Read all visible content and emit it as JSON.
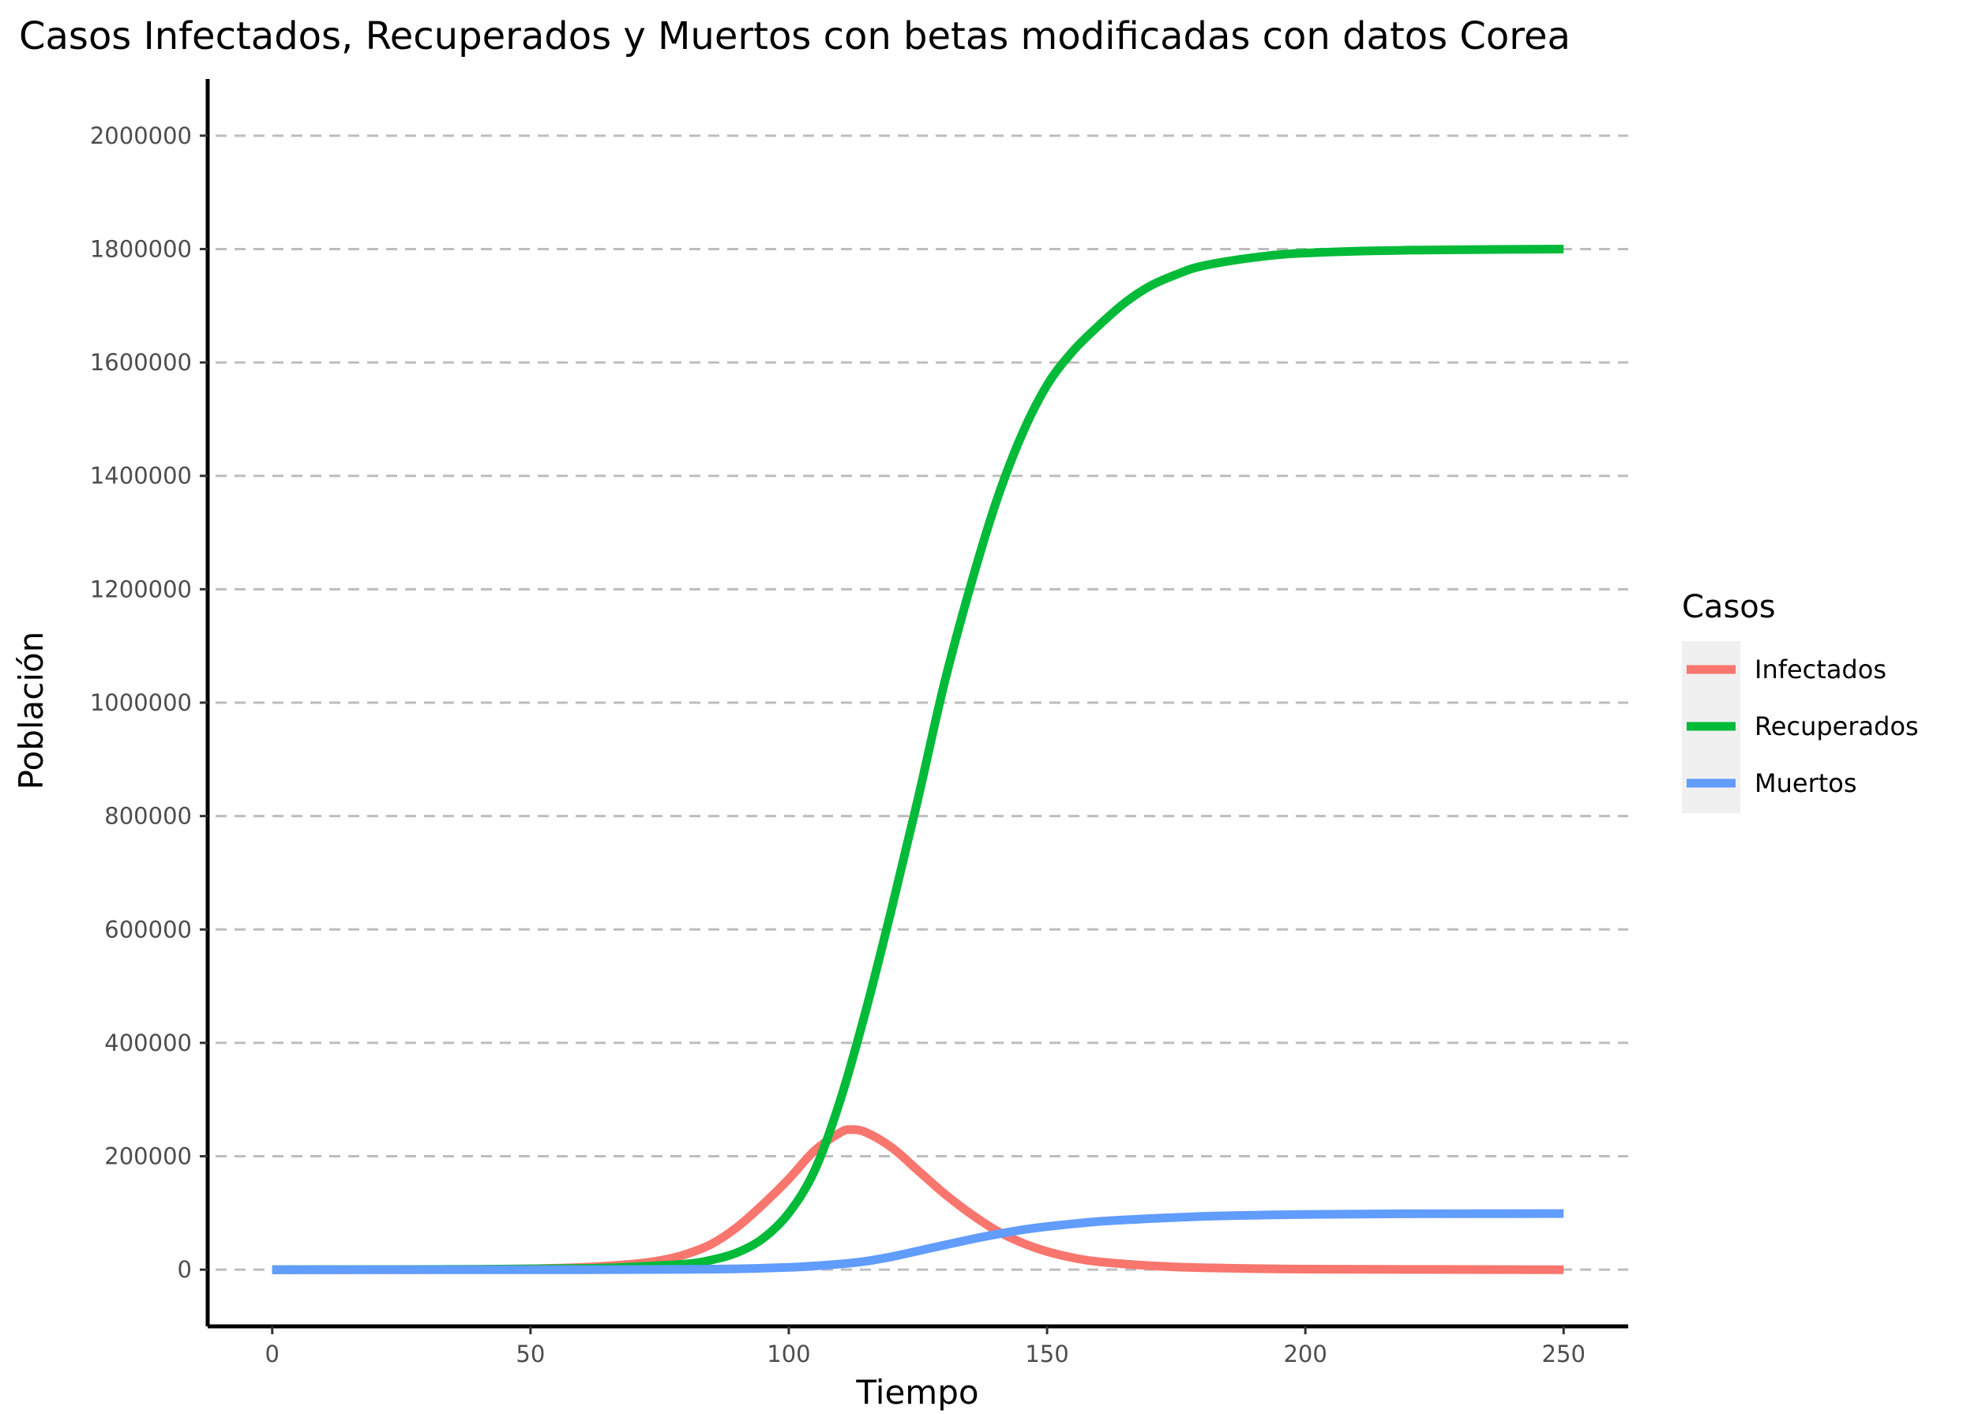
{
  "chart_data": {
    "type": "line",
    "title": "Casos Infectados, Recuperados y Muertos con betas modificadas con datos Corea",
    "xlabel": "Tiempo",
    "ylabel": "Población",
    "xlim": [
      -12.5,
      262.5
    ],
    "ylim": [
      -100000,
      2100000
    ],
    "x_ticks": [
      0,
      50,
      100,
      150,
      200,
      250
    ],
    "y_ticks": [
      0,
      200000,
      400000,
      600000,
      800000,
      1000000,
      1200000,
      1400000,
      1600000,
      1800000,
      2000000
    ],
    "y_grid": "dashed horizontal",
    "legend": {
      "title": "Casos",
      "position": "right"
    },
    "series": [
      {
        "name": "Infectados",
        "color": "#F8766D",
        "points": [
          [
            0,
            0
          ],
          [
            20,
            0
          ],
          [
            40,
            500
          ],
          [
            50,
            1500
          ],
          [
            60,
            4000
          ],
          [
            70,
            10000
          ],
          [
            75,
            16000
          ],
          [
            80,
            27000
          ],
          [
            85,
            45000
          ],
          [
            90,
            75000
          ],
          [
            95,
            115000
          ],
          [
            100,
            160000
          ],
          [
            105,
            210000
          ],
          [
            110,
            242000
          ],
          [
            112,
            247000
          ],
          [
            115,
            242000
          ],
          [
            120,
            215000
          ],
          [
            125,
            175000
          ],
          [
            130,
            135000
          ],
          [
            135,
            100000
          ],
          [
            140,
            70000
          ],
          [
            145,
            48000
          ],
          [
            150,
            32000
          ],
          [
            155,
            21000
          ],
          [
            160,
            14000
          ],
          [
            170,
            7000
          ],
          [
            180,
            3500
          ],
          [
            200,
            1000
          ],
          [
            250,
            0
          ]
        ]
      },
      {
        "name": "Recuperados",
        "color": "#00BA38",
        "points": [
          [
            0,
            0
          ],
          [
            40,
            500
          ],
          [
            60,
            2000
          ],
          [
            70,
            5000
          ],
          [
            80,
            10000
          ],
          [
            85,
            17000
          ],
          [
            90,
            30000
          ],
          [
            95,
            55000
          ],
          [
            100,
            100000
          ],
          [
            105,
            175000
          ],
          [
            110,
            300000
          ],
          [
            115,
            460000
          ],
          [
            120,
            640000
          ],
          [
            125,
            830000
          ],
          [
            130,
            1030000
          ],
          [
            135,
            1200000
          ],
          [
            140,
            1350000
          ],
          [
            145,
            1470000
          ],
          [
            150,
            1560000
          ],
          [
            155,
            1620000
          ],
          [
            160,
            1665000
          ],
          [
            165,
            1705000
          ],
          [
            170,
            1735000
          ],
          [
            175,
            1755000
          ],
          [
            180,
            1770000
          ],
          [
            190,
            1785000
          ],
          [
            200,
            1793000
          ],
          [
            220,
            1798000
          ],
          [
            250,
            1800000
          ]
        ]
      },
      {
        "name": "Muertos",
        "color": "#619CFF",
        "points": [
          [
            0,
            0
          ],
          [
            60,
            0
          ],
          [
            80,
            500
          ],
          [
            90,
            1500
          ],
          [
            100,
            4000
          ],
          [
            105,
            6500
          ],
          [
            110,
            10000
          ],
          [
            115,
            15000
          ],
          [
            120,
            23000
          ],
          [
            125,
            33000
          ],
          [
            130,
            43000
          ],
          [
            135,
            53000
          ],
          [
            140,
            62000
          ],
          [
            145,
            70000
          ],
          [
            150,
            76000
          ],
          [
            160,
            85000
          ],
          [
            170,
            90000
          ],
          [
            180,
            94000
          ],
          [
            190,
            96000
          ],
          [
            200,
            97500
          ],
          [
            220,
            98500
          ],
          [
            250,
            99000
          ]
        ]
      }
    ]
  }
}
